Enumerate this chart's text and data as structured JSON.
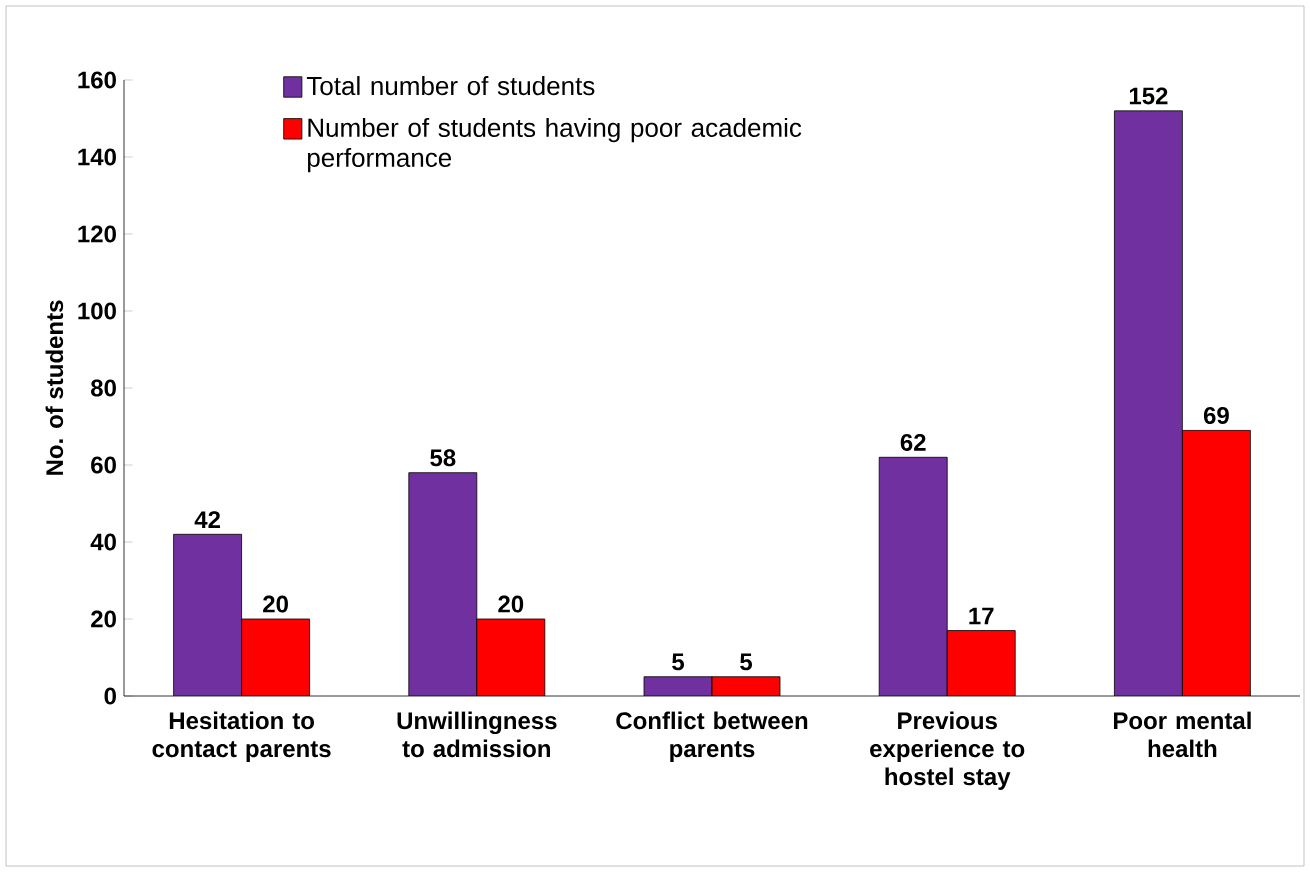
{
  "chart_data": {
    "type": "bar",
    "ylabel": "No. of students",
    "categories": [
      "Hesitation to contact parents",
      "Unwillingness to admission",
      "Conflict between parents",
      "Previous experience to hostel stay",
      "Poor mental health"
    ],
    "series": [
      {
        "name": "Total number of students",
        "color": "#7030a0",
        "values": [
          42,
          58,
          5,
          62,
          152
        ]
      },
      {
        "name": "Number of students having poor academic performance",
        "color": "#ff0000",
        "values": [
          20,
          20,
          5,
          17,
          69
        ]
      }
    ],
    "ylim": [
      0,
      160
    ],
    "yticks": [
      0,
      20,
      40,
      60,
      80,
      100,
      120,
      140,
      160
    ],
    "data_labels": true,
    "legend": "top",
    "grid": false
  }
}
